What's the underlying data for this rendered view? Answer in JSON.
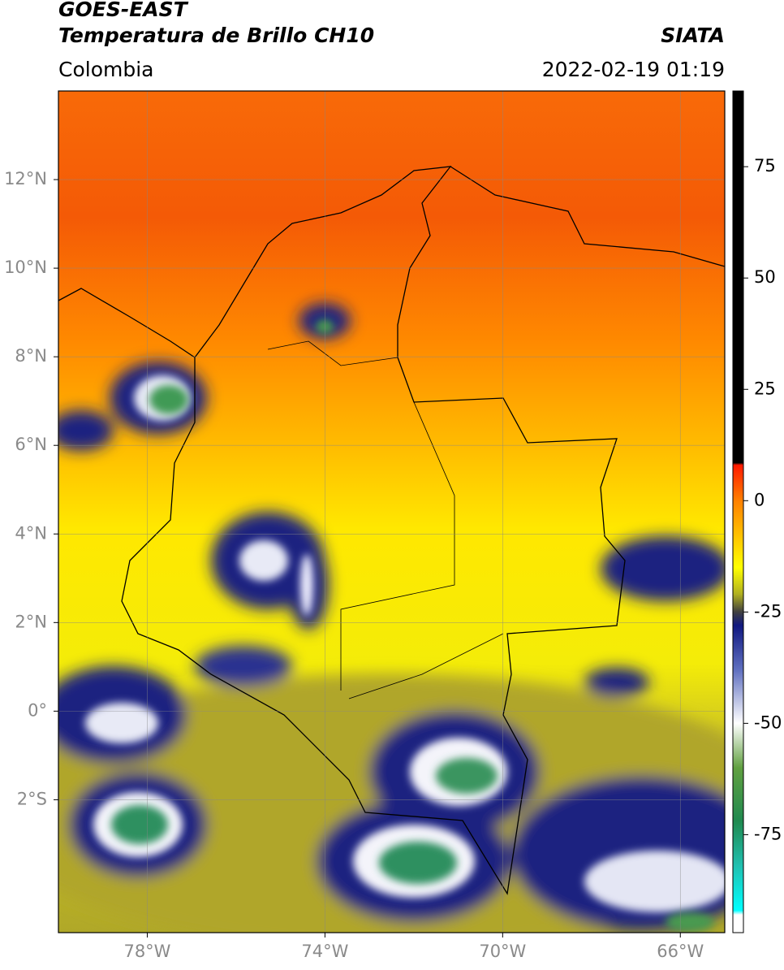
{
  "header": {
    "title": "GOES-EAST",
    "subtitle": "Temperatura de Brillo CH10",
    "region": "Colombia",
    "source": "SIATA",
    "timestamp": "2022-02-19 01:19"
  },
  "map": {
    "xlim": [
      -80,
      -65
    ],
    "ylim": [
      -5,
      14
    ],
    "grid": true,
    "xticks": [
      {
        "value": -78,
        "label": "78°W"
      },
      {
        "value": -74,
        "label": "74°W"
      },
      {
        "value": -70,
        "label": "70°W"
      },
      {
        "value": -66,
        "label": "66°W"
      }
    ],
    "yticks": [
      {
        "value": 12,
        "label": "12°N"
      },
      {
        "value": 10,
        "label": "10°N"
      },
      {
        "value": 8,
        "label": "8°N"
      },
      {
        "value": 6,
        "label": "6°N"
      },
      {
        "value": 4,
        "label": "4°N"
      },
      {
        "value": 2,
        "label": "2°N"
      },
      {
        "value": 0,
        "label": "0°"
      },
      {
        "value": -2,
        "label": "2°S"
      }
    ]
  },
  "colorbar": {
    "lim": [
      -97,
      92
    ],
    "ticks": [
      75,
      50,
      25,
      0,
      -25,
      -50,
      -75
    ],
    "colormap": [
      {
        "value": 92,
        "color": "#000000"
      },
      {
        "value": 8.5,
        "color": "#000000"
      },
      {
        "value": 8,
        "color": "#ff1a00"
      },
      {
        "value": 0,
        "color": "#ff8000"
      },
      {
        "value": -15,
        "color": "#ffff00"
      },
      {
        "value": -21,
        "color": "#b0b020"
      },
      {
        "value": -25,
        "color": "#404040"
      },
      {
        "value": -28,
        "color": "#101880"
      },
      {
        "value": -38,
        "color": "#6070c0"
      },
      {
        "value": -50,
        "color": "#ffffff"
      },
      {
        "value": -60,
        "color": "#60a040"
      },
      {
        "value": -72,
        "color": "#208a50"
      },
      {
        "value": -82,
        "color": "#20c0b0"
      },
      {
        "value": -92,
        "color": "#00ffff"
      },
      {
        "value": -93,
        "color": "#ffffff"
      },
      {
        "value": -97,
        "color": "#ffffff"
      }
    ]
  }
}
